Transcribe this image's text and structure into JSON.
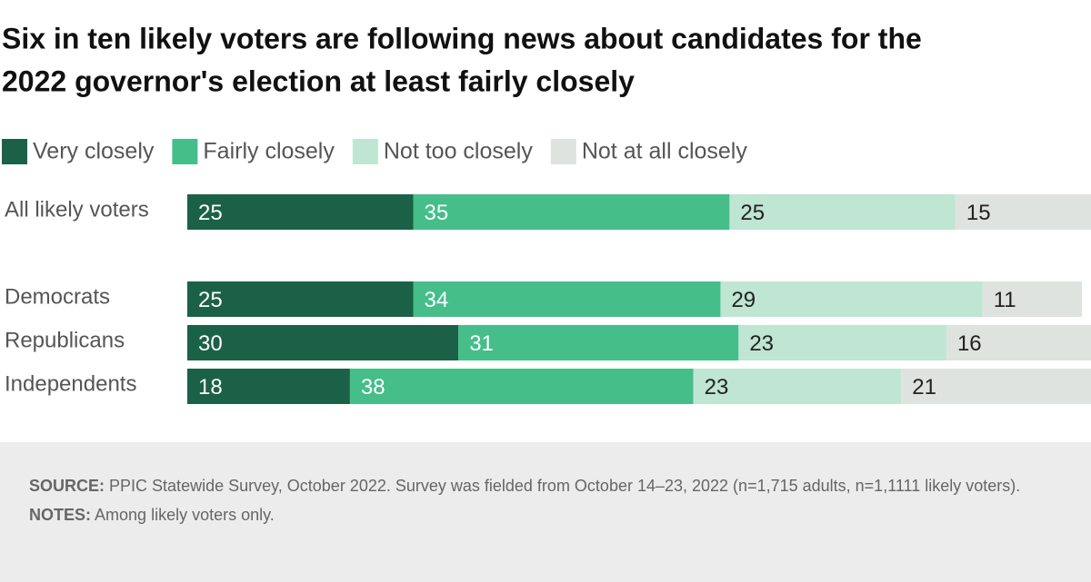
{
  "chart_data": {
    "type": "stacked-bar",
    "orientation": "horizontal",
    "title": [
      "Six in ten likely voters are following news about candidates for the",
      "2022 governor's election at least fairly closely"
    ],
    "categories": [
      "All likely voters",
      "Democrats",
      "Republicans",
      "Independents"
    ],
    "series": [
      {
        "name": "Very closely",
        "color": "#1b6148",
        "label_color": "#ffffff",
        "values": [
          25,
          25,
          30,
          18
        ]
      },
      {
        "name": "Fairly closely",
        "color": "#45be8a",
        "label_color": "#ffffff",
        "values": [
          35,
          34,
          31,
          38
        ]
      },
      {
        "name": "Not too closely",
        "color": "#bfe5d3",
        "label_color": "#222222",
        "values": [
          25,
          29,
          23,
          23
        ]
      },
      {
        "name": "Not at all closely",
        "color": "#dfe3e0",
        "label_color": "#222222",
        "values": [
          15,
          11,
          16,
          21
        ]
      }
    ],
    "xlim": [
      0,
      100
    ],
    "source_label": "SOURCE:",
    "source": "PPIC Statewide Survey, October 2022. Survey was fielded from October 14–23, 2022 (n=1,715 adults, n=1,1111 likely voters).",
    "notes_label": "NOTES:",
    "notes": "Among likely voters only."
  }
}
